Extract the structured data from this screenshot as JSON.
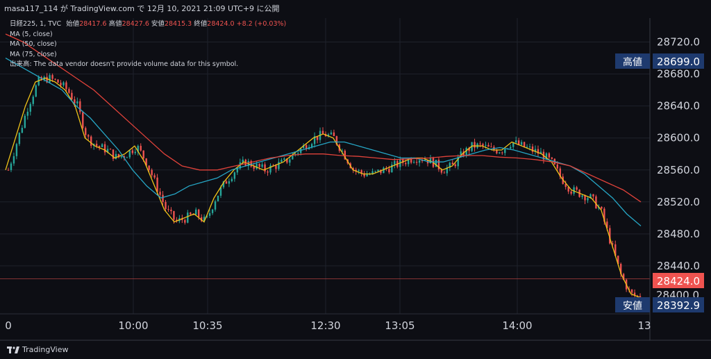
{
  "header": {
    "caption": "masa117_114 が TradingView.com で 12月 10, 2021 21:09 UTC+9 に公開"
  },
  "legend": {
    "symbol": "日経225, 1, TVC",
    "open_label": "始値",
    "open_value": "28417.6",
    "high_label": "高値",
    "high_value": "28427.6",
    "low_label": "安値",
    "low_value": "28415.3",
    "close_label": "終値",
    "close_value": "28424.0",
    "change": "+8.2 (+0.03%)",
    "ma5": "MA (5, close)",
    "ma50": "MA (50, close)",
    "ma75": "MA (75, close)",
    "volume_label": "出来高:",
    "volume_note": "The data vendor doesn't provide volume data for this symbol."
  },
  "axis_badges": {
    "high_label": "高値",
    "high_value": "28699.0",
    "last_value": "28424.0",
    "low_label": "安値",
    "low_value": "28392.9",
    "partial_value": "28400.0"
  },
  "footer": {
    "brand": "TradingView"
  },
  "chart_data": {
    "type": "line",
    "title": "",
    "ylim": [
      28380,
      28750
    ],
    "y_ticks": [
      28720,
      28680,
      28640,
      28600,
      28560,
      28520,
      28480,
      28440
    ],
    "x_tick_labels": [
      "0",
      "10:00",
      "10:35",
      "12:30",
      "13:05",
      "14:00",
      "13"
    ],
    "grid": true,
    "colors": {
      "up": "#26a69a",
      "down": "#ef5350",
      "ma5": "#f0c419",
      "ma50": "#26a6c5",
      "ma75": "#e0423a",
      "price_line": "#ef5350"
    },
    "series": [
      {
        "name": "MA (5, close)",
        "values": [
          28560,
          28600,
          28640,
          28670,
          28675,
          28670,
          28660,
          28640,
          28600,
          28590,
          28585,
          28575,
          28580,
          28590,
          28570,
          28540,
          28510,
          28495,
          28500,
          28505,
          28495,
          28525,
          28545,
          28560,
          28570,
          28565,
          28560,
          28565,
          28570,
          28580,
          28590,
          28600,
          28605,
          28600,
          28580,
          28560,
          28555,
          28555,
          28560,
          28565,
          28570,
          28575,
          28575,
          28570,
          28560,
          28565,
          28580,
          28590,
          28590,
          28585,
          28585,
          28595,
          28590,
          28585,
          28580,
          28570,
          28550,
          28535,
          28530,
          28525,
          28510,
          28470,
          28430,
          28405,
          28400
        ]
      },
      {
        "name": "MA (50, close)",
        "values": [
          28700,
          28690,
          28680,
          28670,
          28660,
          28640,
          28625,
          28605,
          28585,
          28560,
          28540,
          28525,
          28530,
          28540,
          28545,
          28550,
          28560,
          28565,
          28570,
          28575,
          28580,
          28585,
          28590,
          28595,
          28595,
          28590,
          28585,
          28580,
          28575,
          28575,
          28570,
          28570,
          28575,
          28580,
          28585,
          28588,
          28585,
          28580,
          28575,
          28570,
          28565,
          28555,
          28540,
          28525,
          28505,
          28490
        ]
      },
      {
        "name": "MA (75, close)",
        "values": [
          28730,
          28720,
          28705,
          28690,
          28675,
          28660,
          28640,
          28620,
          28600,
          28580,
          28565,
          28560,
          28560,
          28565,
          28570,
          28575,
          28578,
          28580,
          28580,
          28578,
          28577,
          28575,
          28573,
          28574,
          28575,
          28577,
          28578,
          28578,
          28576,
          28575,
          28573,
          28570,
          28565,
          28555,
          28545,
          28535,
          28520
        ]
      }
    ],
    "last_price": 28424.0,
    "day_high": 28699.0,
    "day_low": 28392.9
  }
}
